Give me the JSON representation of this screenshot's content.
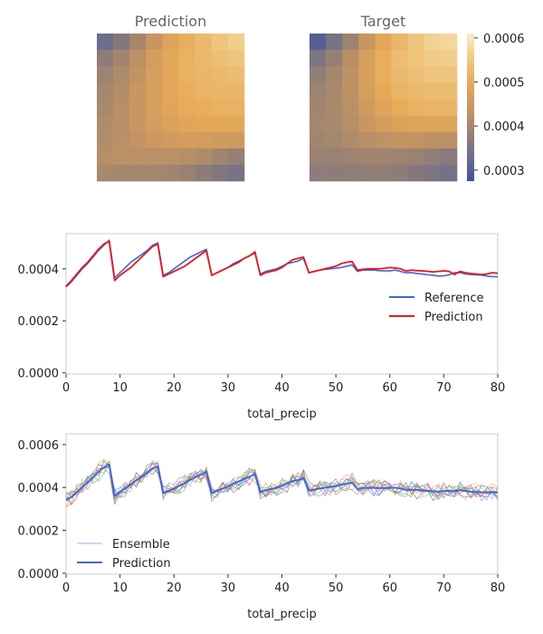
{
  "colors": {
    "reference": "#4566d6",
    "prediction_red": "#e31a1c",
    "prediction_blue": "#4566d6",
    "axis_spine": "#cccccc",
    "tick": "#333333",
    "colormap": [
      "#43529a",
      "#6e6e8a",
      "#9a8272",
      "#c99760",
      "#e7aa58",
      "#f0ca86",
      "#fbecc2"
    ]
  },
  "chart_data": [
    {
      "type": "heatmap",
      "title": "Prediction",
      "rows": 9,
      "cols": 9,
      "values": [
        [
          0.00033,
          0.00036,
          0.0004,
          0.00044,
          0.00048,
          0.000505,
          0.000525,
          0.000545,
          0.00056
        ],
        [
          0.00037,
          0.000395,
          0.000425,
          0.00046,
          0.00049,
          0.00051,
          0.000525,
          0.000535,
          0.000545
        ],
        [
          0.00039,
          0.00041,
          0.000435,
          0.000465,
          0.00049,
          0.00051,
          0.00052,
          0.000525,
          0.00053
        ],
        [
          0.0004,
          0.000415,
          0.00044,
          0.000465,
          0.00049,
          0.000505,
          0.000515,
          0.00052,
          0.00052
        ],
        [
          0.000405,
          0.00042,
          0.00044,
          0.000465,
          0.000485,
          0.0005,
          0.000505,
          0.00051,
          0.00051
        ],
        [
          0.00041,
          0.00042,
          0.00044,
          0.00046,
          0.000475,
          0.000485,
          0.00049,
          0.00049,
          0.00049
        ],
        [
          0.000415,
          0.000425,
          0.000435,
          0.000445,
          0.000455,
          0.00046,
          0.00046,
          0.000455,
          0.00045
        ],
        [
          0.00042,
          0.000425,
          0.000425,
          0.000425,
          0.000425,
          0.00042,
          0.00041,
          0.000395,
          0.00038
        ],
        [
          0.000405,
          0.0004,
          0.0004,
          0.0004,
          0.000395,
          0.000385,
          0.00037,
          0.000355,
          0.000345
        ]
      ],
      "vmin": 0.000275,
      "vmax": 0.00061
    },
    {
      "type": "heatmap",
      "title": "Target",
      "rows": 9,
      "cols": 9,
      "values": [
        [
          0.0003,
          0.000345,
          0.00039,
          0.00044,
          0.00049,
          0.00052,
          0.000545,
          0.000565,
          0.000575
        ],
        [
          0.00035,
          0.00038,
          0.00042,
          0.000465,
          0.000505,
          0.00053,
          0.000545,
          0.000555,
          0.00056
        ],
        [
          0.000375,
          0.0004,
          0.00043,
          0.00047,
          0.000505,
          0.000525,
          0.000535,
          0.000545,
          0.000545
        ],
        [
          0.00039,
          0.000405,
          0.00043,
          0.000465,
          0.000495,
          0.000515,
          0.000525,
          0.00053,
          0.00053
        ],
        [
          0.000395,
          0.000405,
          0.000425,
          0.000455,
          0.00048,
          0.0005,
          0.00051,
          0.000515,
          0.000515
        ],
        [
          0.0004,
          0.000405,
          0.00042,
          0.00044,
          0.00046,
          0.000475,
          0.00048,
          0.00048,
          0.00048
        ],
        [
          0.000395,
          0.0004,
          0.00041,
          0.00042,
          0.00043,
          0.000435,
          0.000435,
          0.00043,
          0.000425
        ],
        [
          0.000385,
          0.000385,
          0.00039,
          0.000395,
          0.000395,
          0.00039,
          0.000385,
          0.000375,
          0.000365
        ],
        [
          0.00037,
          0.00037,
          0.000372,
          0.000375,
          0.000375,
          0.00037,
          0.00036,
          0.00035,
          0.00034
        ]
      ],
      "vmin": 0.000275,
      "vmax": 0.00061
    },
    {
      "type": "colorbar",
      "ticks": [
        "0.0003",
        "0.0004",
        "0.0005",
        "0.0006"
      ],
      "tick_values": [
        0.0003,
        0.0004,
        0.0005,
        0.0006
      ],
      "vmin": 0.000275,
      "vmax": 0.00061
    },
    {
      "type": "line",
      "xlabel": "total_precip",
      "ylabel": "",
      "xlim": [
        0,
        80
      ],
      "ylim": [
        -4.5e-06,
        0.000535
      ],
      "xticks": [
        "0",
        "10",
        "20",
        "30",
        "40",
        "50",
        "60",
        "70",
        "80"
      ],
      "xtick_values": [
        0,
        10,
        20,
        30,
        40,
        50,
        60,
        70,
        80
      ],
      "yticks": [
        "0.0000",
        "0.0002",
        "0.0004"
      ],
      "ytick_values": [
        0,
        0.0002,
        0.0004
      ],
      "legend_position": "center-right",
      "series": [
        {
          "name": "Reference",
          "color": "#4566d6",
          "x": [
            0,
            1,
            2,
            3,
            4,
            5,
            6,
            7,
            8,
            9,
            10,
            11,
            12,
            13,
            14,
            15,
            16,
            17,
            18,
            19,
            20,
            21,
            22,
            23,
            24,
            25,
            26,
            27,
            28,
            29,
            30,
            31,
            32,
            33,
            34,
            35,
            36,
            37,
            38,
            39,
            40,
            41,
            42,
            43,
            44,
            45,
            46,
            47,
            48,
            49,
            50,
            51,
            52,
            53,
            54,
            55,
            56,
            57,
            58,
            59,
            60,
            61,
            62,
            63,
            64,
            65,
            66,
            67,
            68,
            69,
            70,
            71,
            72,
            73,
            74,
            75,
            76,
            77,
            78,
            79,
            80
          ],
          "y": [
            0.00033,
            0.00035,
            0.000375,
            0.0004,
            0.00042,
            0.000445,
            0.00047,
            0.00049,
            0.00051,
            0.000365,
            0.000385,
            0.000405,
            0.000425,
            0.00044,
            0.000455,
            0.00047,
            0.00049,
            0.0005,
            0.000375,
            0.000385,
            0.0004,
            0.000415,
            0.00043,
            0.000445,
            0.000455,
            0.000465,
            0.000475,
            0.000375,
            0.000385,
            0.000395,
            0.000405,
            0.00042,
            0.00043,
            0.00044,
            0.00045,
            0.00046,
            0.00038,
            0.00039,
            0.000395,
            0.0004,
            0.00041,
            0.00042,
            0.000425,
            0.00043,
            0.00044,
            0.000385,
            0.00039,
            0.000395,
            0.000398,
            0.0004,
            0.000402,
            0.000405,
            0.00041,
            0.000415,
            0.00039,
            0.000395,
            0.000395,
            0.000395,
            0.000393,
            0.000392,
            0.000392,
            0.000395,
            0.00039,
            0.000385,
            0.000385,
            0.000382,
            0.00038,
            0.000377,
            0.000375,
            0.000372,
            0.000373,
            0.000377,
            0.000385,
            0.000385,
            0.00038,
            0.000378,
            0.000377,
            0.000376,
            0.000372,
            0.00037,
            0.00037
          ]
        },
        {
          "name": "Prediction",
          "color": "#e31a1c",
          "x": [
            0,
            1,
            2,
            3,
            4,
            5,
            6,
            7,
            8,
            9,
            10,
            11,
            12,
            13,
            14,
            15,
            16,
            17,
            18,
            19,
            20,
            21,
            22,
            23,
            24,
            25,
            26,
            27,
            28,
            29,
            30,
            31,
            32,
            33,
            34,
            35,
            36,
            37,
            38,
            39,
            40,
            41,
            42,
            43,
            44,
            45,
            46,
            47,
            48,
            49,
            50,
            51,
            52,
            53,
            54,
            55,
            56,
            57,
            58,
            59,
            60,
            61,
            62,
            63,
            64,
            65,
            66,
            67,
            68,
            69,
            70,
            71,
            72,
            73,
            74,
            75,
            76,
            77,
            78,
            79,
            80
          ],
          "y": [
            0.000333,
            0.000355,
            0.00038,
            0.000405,
            0.000425,
            0.00045,
            0.000475,
            0.000495,
            0.000505,
            0.000355,
            0.000375,
            0.00039,
            0.000405,
            0.000425,
            0.000445,
            0.000465,
            0.000485,
            0.000495,
            0.00037,
            0.00038,
            0.00039,
            0.0004,
            0.00041,
            0.000425,
            0.00044,
            0.000455,
            0.00047,
            0.000375,
            0.000385,
            0.000395,
            0.000405,
            0.000415,
            0.000425,
            0.00044,
            0.00045,
            0.000465,
            0.000375,
            0.000385,
            0.00039,
            0.000395,
            0.000405,
            0.00042,
            0.000435,
            0.00044,
            0.000445,
            0.000385,
            0.00039,
            0.000395,
            0.0004,
            0.000405,
            0.00041,
            0.00042,
            0.000425,
            0.000428,
            0.000395,
            0.000398,
            0.0004,
            0.0004,
            0.0004,
            0.000402,
            0.000405,
            0.000403,
            0.0004,
            0.000392,
            0.000395,
            0.000393,
            0.000392,
            0.00039,
            0.000388,
            0.00039,
            0.000392,
            0.00039,
            0.000378,
            0.00039,
            0.000385,
            0.000382,
            0.00038,
            0.000378,
            0.00038,
            0.000385,
            0.000383
          ]
        }
      ]
    },
    {
      "type": "line",
      "xlabel": "total_precip",
      "ylabel": "",
      "xlim": [
        0,
        80
      ],
      "ylim": [
        -4.5e-06,
        0.00065
      ],
      "xticks": [
        "0",
        "10",
        "20",
        "30",
        "40",
        "50",
        "60",
        "70",
        "80"
      ],
      "xtick_values": [
        0,
        10,
        20,
        30,
        40,
        50,
        60,
        70,
        80
      ],
      "yticks": [
        "0.0000",
        "0.0002",
        "0.0004",
        "0.0006"
      ],
      "ytick_values": [
        0,
        0.0002,
        0.0004,
        0.0006
      ],
      "legend_position": "lower-left",
      "ensemble_members": 10,
      "ensemble_colors": [
        "#4566d6",
        "#e6a030",
        "#4aa84a",
        "#d64545",
        "#9a6fc9",
        "#8c6a4a",
        "#e07ab8",
        "#888888",
        "#b8b83a",
        "#3ab8c8"
      ],
      "series": [
        {
          "name": "Ensemble",
          "color": "#4566d6",
          "mean": [
            0.00034,
            0.000355,
            0.000378,
            0.000402,
            0.000423,
            0.000448,
            0.000473,
            0.000493,
            0.000508,
            0.00036,
            0.00038,
            0.000397,
            0.000415,
            0.000433,
            0.00045,
            0.000468,
            0.000488,
            0.000498,
            0.000373,
            0.000383,
            0.000395,
            0.000408,
            0.00042,
            0.000435,
            0.000448,
            0.00046,
            0.000473,
            0.000375,
            0.000385,
            0.000395,
            0.000405,
            0.000418,
            0.000428,
            0.00044,
            0.00045,
            0.000463,
            0.000378,
            0.000388,
            0.000393,
            0.000398,
            0.000408,
            0.00042,
            0.00043,
            0.000435,
            0.000443,
            0.000385,
            0.00039,
            0.000395,
            0.000399,
            0.000403,
            0.000406,
            0.000413,
            0.000418,
            0.000422,
            0.000393,
            0.000397,
            0.000398,
            0.000398,
            0.000397,
            0.000397,
            0.000399,
            0.000399,
            0.000395,
            0.000389,
            0.00039,
            0.000388,
            0.000386,
            0.000384,
            0.000382,
            0.000381,
            0.000383,
            0.000384,
            0.000382,
            0.000388,
            0.000383,
            0.00038,
            0.000379,
            0.000377,
            0.000376,
            0.000378,
            0.000377
          ],
          "spread": 3.5e-05
        },
        {
          "name": "Prediction",
          "color": "#4566d6",
          "x": [
            0,
            1,
            2,
            3,
            4,
            5,
            6,
            7,
            8,
            9,
            10,
            11,
            12,
            13,
            14,
            15,
            16,
            17,
            18,
            19,
            20,
            21,
            22,
            23,
            24,
            25,
            26,
            27,
            28,
            29,
            30,
            31,
            32,
            33,
            34,
            35,
            36,
            37,
            38,
            39,
            40,
            41,
            42,
            43,
            44,
            45,
            46,
            47,
            48,
            49,
            50,
            51,
            52,
            53,
            54,
            55,
            56,
            57,
            58,
            59,
            60,
            61,
            62,
            63,
            64,
            65,
            66,
            67,
            68,
            69,
            70,
            71,
            72,
            73,
            74,
            75,
            76,
            77,
            78,
            79,
            80
          ],
          "y": [
            0.00034,
            0.000355,
            0.000378,
            0.000402,
            0.000423,
            0.000448,
            0.000473,
            0.000493,
            0.000508,
            0.00036,
            0.00038,
            0.000397,
            0.000415,
            0.000433,
            0.00045,
            0.000468,
            0.000488,
            0.000498,
            0.000373,
            0.000383,
            0.000395,
            0.000408,
            0.00042,
            0.000435,
            0.000448,
            0.00046,
            0.000473,
            0.000375,
            0.000385,
            0.000395,
            0.000405,
            0.000418,
            0.000428,
            0.00044,
            0.00045,
            0.000463,
            0.000378,
            0.000388,
            0.000393,
            0.000398,
            0.000408,
            0.00042,
            0.00043,
            0.000435,
            0.000443,
            0.000385,
            0.00039,
            0.000395,
            0.000399,
            0.000403,
            0.000406,
            0.000413,
            0.000418,
            0.000422,
            0.000393,
            0.000397,
            0.000398,
            0.000398,
            0.000397,
            0.000397,
            0.000399,
            0.000399,
            0.000395,
            0.000389,
            0.00039,
            0.000388,
            0.000386,
            0.000384,
            0.000382,
            0.000381,
            0.000383,
            0.000384,
            0.000382,
            0.000388,
            0.000383,
            0.00038,
            0.000379,
            0.000377,
            0.000376,
            0.000378,
            0.000377
          ]
        }
      ]
    }
  ]
}
